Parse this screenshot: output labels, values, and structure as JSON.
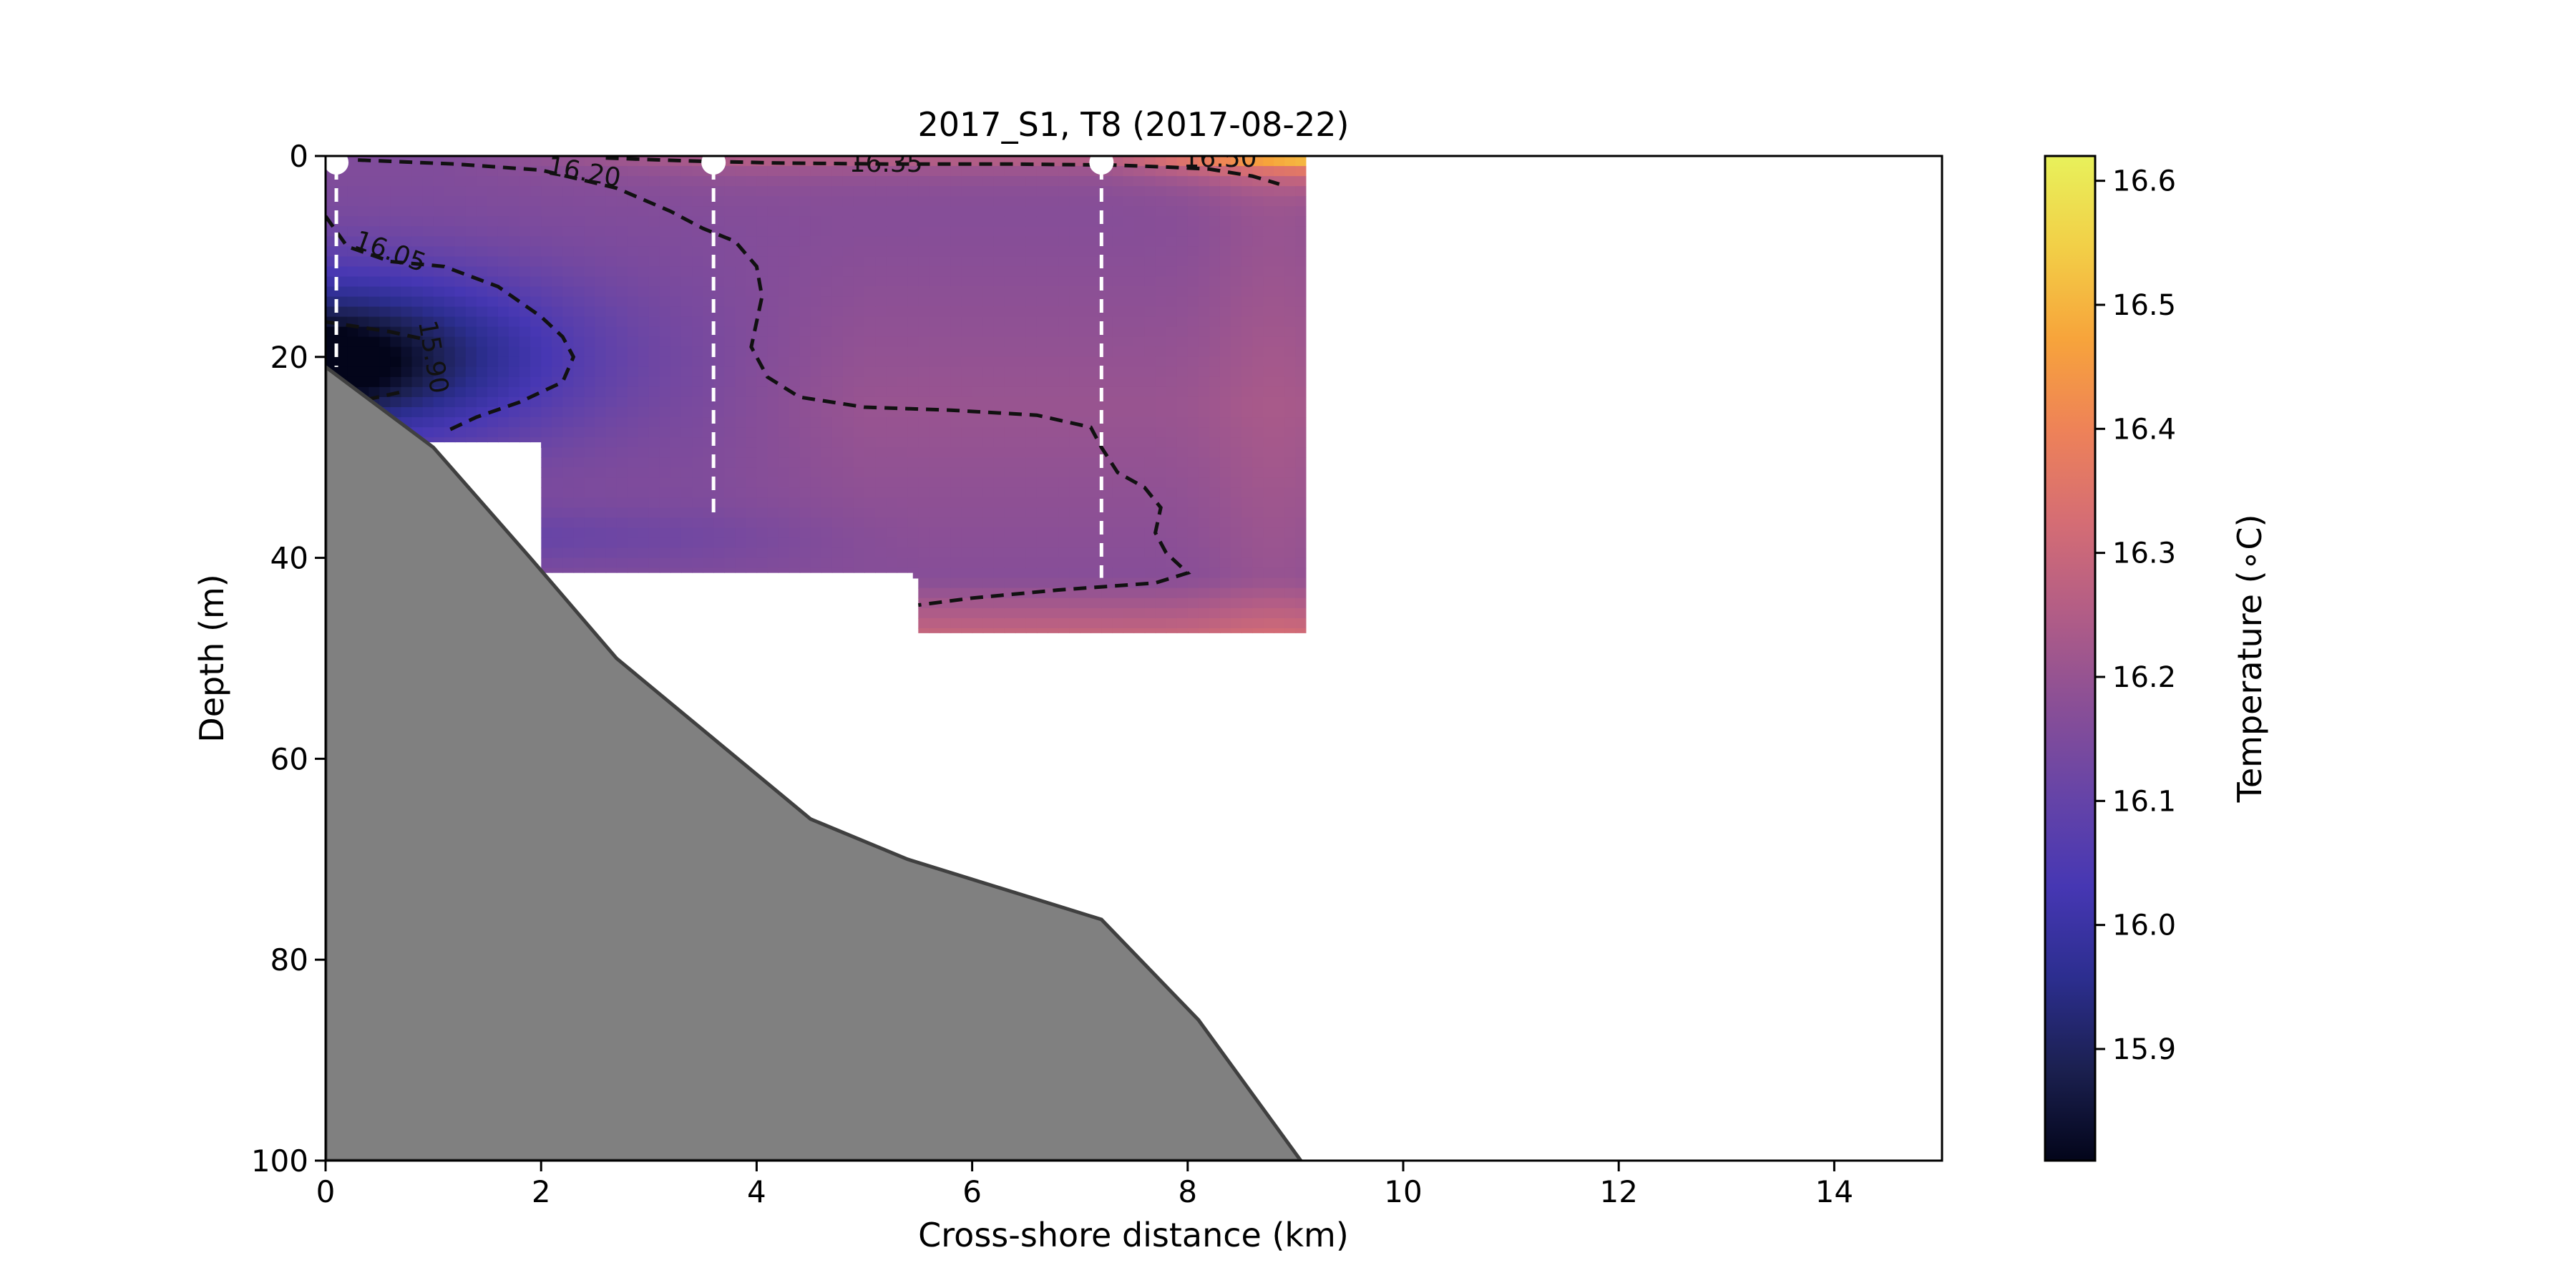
{
  "chart_data": {
    "type": "heatmap",
    "title": "2017_S1, T8 (2017-08-22)",
    "xlabel": "Cross-shore distance (km)",
    "ylabel": "Depth (m)",
    "xlim": [
      0,
      15
    ],
    "ylim": [
      100,
      0
    ],
    "y_inverted": true,
    "x_ticks": [
      "0",
      "2",
      "4",
      "6",
      "8",
      "10",
      "12",
      "14"
    ],
    "y_ticks": [
      "0",
      "20",
      "40",
      "60",
      "80",
      "100"
    ],
    "grid": false,
    "colorbar": {
      "label": "Temperature (∘C)",
      "range": [
        15.81,
        16.62
      ],
      "ticks": [
        "15.9",
        "16.0",
        "16.1",
        "16.2",
        "16.3",
        "16.4",
        "16.5",
        "16.6"
      ],
      "colormap": [
        "#03051a",
        "#1b2050",
        "#2c2e8f",
        "#4637b3",
        "#6644a7",
        "#8a4f96",
        "#b25d86",
        "#d56d74",
        "#ee8258",
        "#f7a43b",
        "#f2cf47",
        "#e8f15b"
      ]
    },
    "stations_km": [
      0.1,
      3.6,
      7.2
    ],
    "station_bottom_depths_m": [
      21,
      36,
      42
    ],
    "bathymetry": {
      "x": [
        0,
        1,
        1.9,
        2.7,
        3.6,
        4.5,
        5.4,
        6.3,
        7.2,
        8.1,
        9.05
      ],
      "depth": [
        21,
        29,
        40,
        50,
        58,
        66,
        70,
        73,
        76,
        86,
        100
      ]
    },
    "data_blocks": [
      {
        "x": [
          0,
          2
        ],
        "depth": [
          0,
          28.5
        ]
      },
      {
        "x": [
          2,
          5.45
        ],
        "depth": [
          0,
          41.5
        ]
      },
      {
        "x": [
          5.45,
          9.1
        ],
        "depth": [
          0,
          47.5
        ]
      }
    ],
    "contour_levels": [
      15.9,
      16.05,
      16.2,
      16.35,
      16.5
    ],
    "contour_labels": [
      "15.90",
      "16.05",
      "16.20",
      "16.35",
      "16.50"
    ],
    "contours": [
      {
        "level": 15.9,
        "x": [
          0,
          0.6,
          0.9
        ],
        "depth": [
          16.5,
          17.5,
          18.2
        ]
      },
      {
        "level": 15.9,
        "x": [
          0,
          0.4,
          0.7
        ],
        "depth": [
          25,
          24.2,
          23.5
        ]
      },
      {
        "level": 16.05,
        "x": [
          0,
          0.2,
          0.6,
          1.1,
          1.6,
          2.0,
          2.2,
          2.3,
          2.2,
          1.8,
          1.4,
          1.1
        ],
        "depth": [
          6,
          9,
          10.5,
          11,
          13,
          16,
          18,
          20,
          22.5,
          24.5,
          26,
          27.5
        ]
      },
      {
        "level": 16.2,
        "x": [
          0.3,
          1.2,
          2.0,
          2.7,
          3.2,
          3.5,
          3.8,
          4.0,
          4.05,
          4.0,
          3.95,
          4.1,
          4.4,
          5.0,
          5.8,
          6.6,
          7.1,
          7.2,
          7.35,
          7.6,
          7.75,
          7.7,
          7.8,
          8.0,
          7.7,
          6.8,
          6.0,
          5.5
        ],
        "depth": [
          0.4,
          0.8,
          1.4,
          3.2,
          5.5,
          7.2,
          8.5,
          11,
          14,
          16.5,
          19,
          22,
          24,
          25,
          25.3,
          25.8,
          27,
          29,
          31.5,
          33,
          35,
          37.5,
          39.5,
          41.5,
          42.5,
          43.2,
          44,
          44.7
        ]
      },
      {
        "level": 16.35,
        "x": [
          2.6,
          3.4,
          4.2,
          5.2,
          6.3,
          7.3,
          7.8,
          8.2,
          8.6,
          8.85
        ],
        "depth": [
          0.2,
          0.5,
          0.7,
          0.8,
          0.8,
          0.9,
          1.1,
          1.3,
          2.0,
          2.8
        ]
      }
    ],
    "contour_annotations": [
      {
        "text": "15.90",
        "x": 1.0,
        "depth": 20
      },
      {
        "text": "16.05",
        "x": 0.6,
        "depth": 9.5
      },
      {
        "text": "16.20",
        "x": 2.4,
        "depth": 1.6
      },
      {
        "text": "16.35",
        "x": 5.2,
        "depth": 0.7
      },
      {
        "text": "16.50",
        "x": 8.3,
        "depth": 0.2
      }
    ]
  }
}
